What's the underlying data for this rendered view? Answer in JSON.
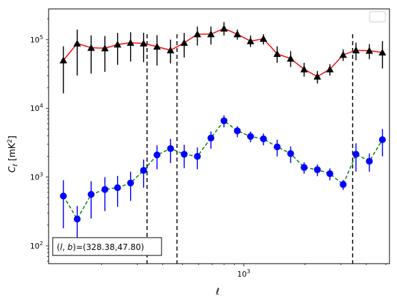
{
  "chart_data": {
    "type": "scatter",
    "title": "",
    "xlabel": "ℓ",
    "ylabel": "C_ℓ [mK²]",
    "xscale": "log",
    "yscale": "log",
    "xlim": [
      110,
      5200
    ],
    "ylim": [
      55,
      280000
    ],
    "x_major_ticks": [
      {
        "value": 1000,
        "mantissa": "10",
        "exponent": "3"
      }
    ],
    "y_major_ticks": [
      {
        "value": 100,
        "mantissa": "10",
        "exponent": "2"
      },
      {
        "value": 1000,
        "mantissa": "10",
        "exponent": "3"
      },
      {
        "value": 10000,
        "mantissa": "10",
        "exponent": "4"
      },
      {
        "value": 100000,
        "mantissa": "10",
        "exponent": "5"
      }
    ],
    "legend": {
      "placement": "top-right",
      "entries": []
    },
    "annotation": {
      "text": "(l,b)=(328.38,47.80)",
      "label": "(l, b)",
      "values": "=(328.38,47.80)",
      "placement": "bottom-left"
    },
    "vlines": [
      335,
      470,
      3430
    ],
    "colors": {
      "upper_line": "#ff0000",
      "upper_marker": "#000000",
      "lower_line": "#008000",
      "lower_marker": "#0000ff",
      "vline": "#000000"
    },
    "series": [
      {
        "marker": "triangle",
        "line_style": "solid",
        "x": [
          130,
          152,
          178,
          208,
          240,
          278,
          322,
          375,
          437,
          510,
          592,
          690,
          800,
          930,
          1080,
          1250,
          1460,
          1700,
          1980,
          2300,
          2650,
          3080,
          3560,
          4140,
          4800
        ],
        "y": [
          50000,
          88000,
          76000,
          75000,
          85000,
          90000,
          88000,
          79000,
          70000,
          90000,
          120000,
          120000,
          145000,
          120000,
          95000,
          103000,
          62000,
          53000,
          37000,
          29000,
          37000,
          60000,
          70000,
          69000,
          65000
        ],
        "yerr_low": [
          16500,
          30000,
          32000,
          34000,
          43000,
          48000,
          47000,
          42000,
          45000,
          55000,
          82000,
          85000,
          115000,
          100000,
          78000,
          85000,
          46000,
          40000,
          29000,
          23000,
          30000,
          49000,
          50000,
          52000,
          38000
        ],
        "yerr_high": [
          80000,
          140000,
          115000,
          113000,
          125000,
          128000,
          126000,
          116000,
          100000,
          125000,
          155000,
          155000,
          180000,
          140000,
          115000,
          120000,
          80000,
          68000,
          46000,
          35000,
          44000,
          72000,
          90000,
          86000,
          95000
        ]
      },
      {
        "marker": "circle",
        "line_style": "dashed",
        "x": [
          130,
          152,
          178,
          208,
          240,
          278,
          322,
          375,
          437,
          510,
          592,
          690,
          800,
          930,
          1080,
          1250,
          1460,
          1700,
          1980,
          2300,
          2650,
          3080,
          3560,
          4140,
          4800
        ],
        "y": [
          530,
          245,
          560,
          660,
          700,
          820,
          1250,
          2100,
          2600,
          2150,
          2000,
          3700,
          6600,
          4700,
          3900,
          3600,
          2750,
          2200,
          1380,
          1280,
          1120,
          780,
          2150,
          1700,
          3500
        ],
        "yerr_low": [
          180,
          110,
          250,
          320,
          370,
          450,
          700,
          1300,
          1600,
          1350,
          1300,
          2600,
          5300,
          3800,
          3200,
          2900,
          2000,
          1600,
          1120,
          1030,
          900,
          650,
          1200,
          1200,
          2000
        ],
        "yerr_high": [
          900,
          380,
          870,
          1000,
          1040,
          1200,
          1800,
          2900,
          3600,
          2950,
          2700,
          4600,
          7900,
          5500,
          4600,
          4300,
          3500,
          2800,
          1640,
          1530,
          1340,
          910,
          3100,
          2200,
          5000
        ]
      }
    ]
  }
}
